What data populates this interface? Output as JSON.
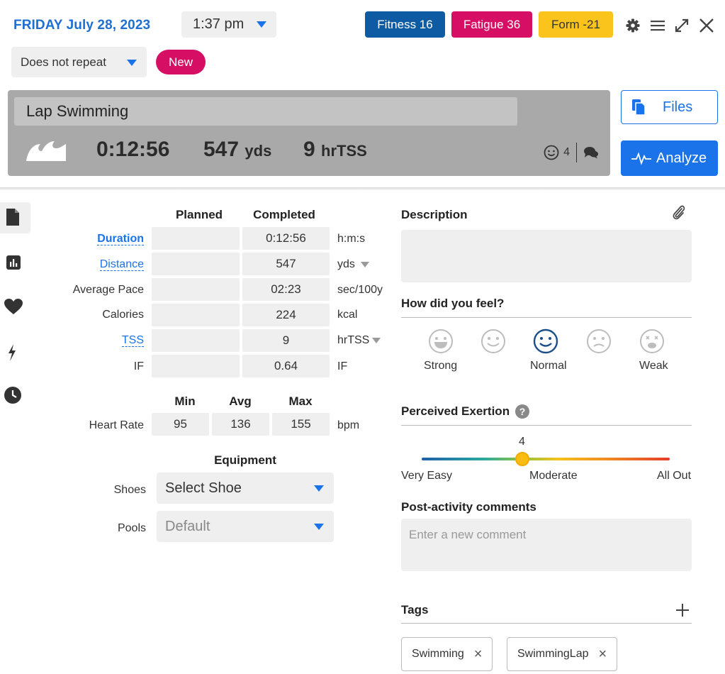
{
  "header": {
    "date": "FRIDAY July 28, 2023",
    "time": "1:37 pm",
    "fitness": "Fitness 16",
    "fatigue": "Fatigue 36",
    "form": "Form -21",
    "repeat": "Does not repeat",
    "new_label": "New"
  },
  "activity": {
    "title": "Lap Swimming",
    "duration": "0:12:56",
    "distance_value": "547",
    "distance_unit": "yds",
    "tss_value": "9",
    "tss_unit": "hrTSS",
    "feel_count": "4",
    "files_label": "Files",
    "analyze_label": "Analyze"
  },
  "metrics": {
    "planned_header": "Planned",
    "completed_header": "Completed",
    "rows": [
      {
        "label": "Duration",
        "planned": "",
        "completed": "0:12:56",
        "unit": "h:m:s"
      },
      {
        "label": "Distance",
        "planned": "",
        "completed": "547",
        "unit": "yds"
      },
      {
        "label": "Average Pace",
        "planned": "",
        "completed": "02:23",
        "unit": "sec/100y"
      },
      {
        "label": "Calories",
        "planned": "",
        "completed": "224",
        "unit": "kcal"
      },
      {
        "label": "TSS",
        "planned": "",
        "completed": "9",
        "unit": "hrTSS"
      },
      {
        "label": "IF",
        "planned": "",
        "completed": "0.64",
        "unit": "IF"
      }
    ],
    "min_header": "Min",
    "avg_header": "Avg",
    "max_header": "Max",
    "hr_label": "Heart Rate",
    "hr_min": "95",
    "hr_avg": "136",
    "hr_max": "155",
    "hr_unit": "bpm"
  },
  "equipment": {
    "title": "Equipment",
    "shoes_label": "Shoes",
    "shoes_value": "Select Shoe",
    "pools_label": "Pools",
    "pools_value": "Default"
  },
  "description": {
    "title": "Description"
  },
  "feel": {
    "title": "How did you feel?",
    "labels": [
      "Strong",
      "Normal",
      "Weak"
    ],
    "selected_level": 3
  },
  "exertion": {
    "title": "Perceived Exertion",
    "value": "4",
    "scale_min_label": "Very Easy",
    "scale_mid_label": "Moderate",
    "scale_max_label": "All Out"
  },
  "comments": {
    "title": "Post-activity comments",
    "placeholder": "Enter a new comment"
  },
  "tags": {
    "title": "Tags",
    "items": [
      "Swimming",
      "SwimmingLap"
    ]
  },
  "colors": {
    "brand_blue": "#1a73e8",
    "fitness": "#0e5ba3",
    "fatigue": "#d60f64",
    "form": "#fbc41c"
  }
}
